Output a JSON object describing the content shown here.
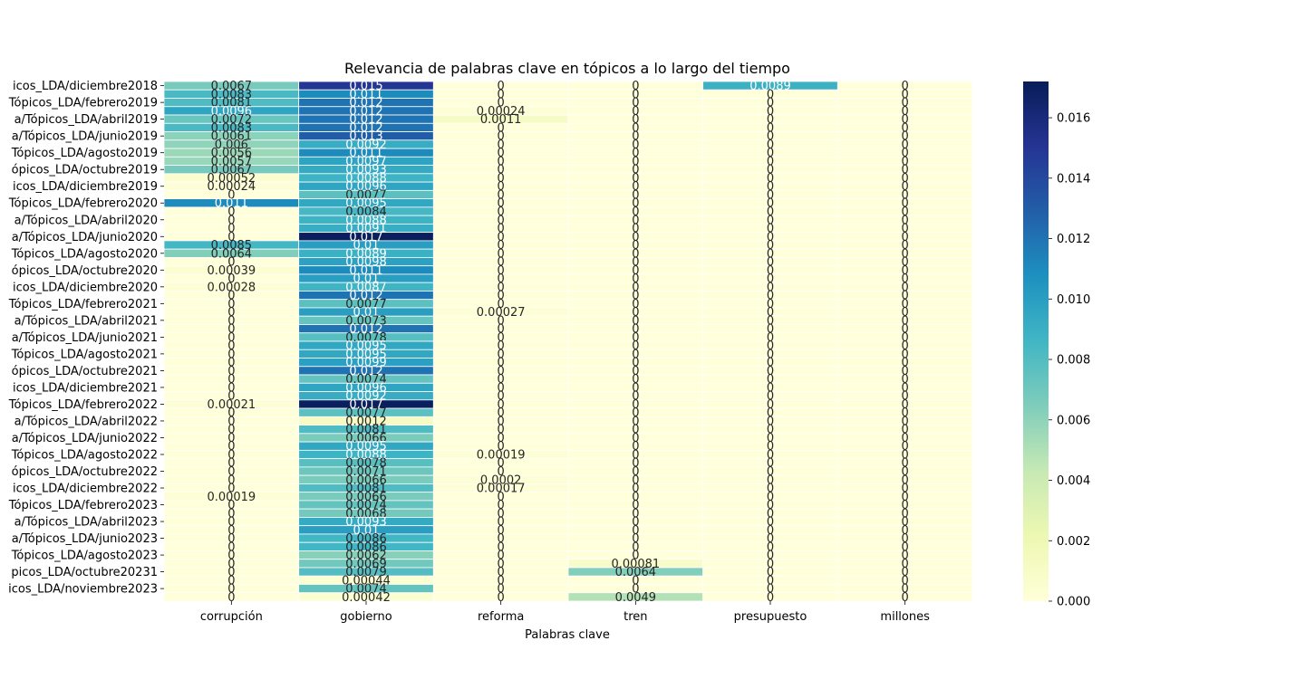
{
  "chart_data": {
    "type": "heatmap",
    "title": "Relevancia de palabras clave en tópicos a lo largo del tiempo",
    "xlabel": "Palabras clave",
    "ylabel": "",
    "columns": [
      "corrupción",
      "gobierno",
      "reforma",
      "tren",
      "presupuesto",
      "millones"
    ],
    "row_tick_labels": [
      {
        "row": 0,
        "label": "icos_LDA/diciembre2018"
      },
      {
        "row": 2,
        "label": "Tópicos_LDA/febrero2019"
      },
      {
        "row": 4,
        "label": "a/Tópicos_LDA/abril2019"
      },
      {
        "row": 6,
        "label": "a/Tópicos_LDA/junio2019"
      },
      {
        "row": 8,
        "label": "Tópicos_LDA/agosto2019"
      },
      {
        "row": 10,
        "label": "ópicos_LDA/octubre2019"
      },
      {
        "row": 12,
        "label": "icos_LDA/diciembre2019"
      },
      {
        "row": 14,
        "label": "Tópicos_LDA/febrero2020"
      },
      {
        "row": 16,
        "label": "a/Tópicos_LDA/abril2020"
      },
      {
        "row": 18,
        "label": "a/Tópicos_LDA/junio2020"
      },
      {
        "row": 20,
        "label": "Tópicos_LDA/agosto2020"
      },
      {
        "row": 22,
        "label": "ópicos_LDA/octubre2020"
      },
      {
        "row": 24,
        "label": "icos_LDA/diciembre2020"
      },
      {
        "row": 26,
        "label": "Tópicos_LDA/febrero2021"
      },
      {
        "row": 28,
        "label": "a/Tópicos_LDA/abril2021"
      },
      {
        "row": 30,
        "label": "a/Tópicos_LDA/junio2021"
      },
      {
        "row": 32,
        "label": "Tópicos_LDA/agosto2021"
      },
      {
        "row": 34,
        "label": "ópicos_LDA/octubre2021"
      },
      {
        "row": 36,
        "label": "icos_LDA/diciembre2021"
      },
      {
        "row": 38,
        "label": "Tópicos_LDA/febrero2022"
      },
      {
        "row": 40,
        "label": "a/Tópicos_LDA/abril2022"
      },
      {
        "row": 42,
        "label": "a/Tópicos_LDA/junio2022"
      },
      {
        "row": 44,
        "label": "Tópicos_LDA/agosto2022"
      },
      {
        "row": 46,
        "label": "ópicos_LDA/octubre2022"
      },
      {
        "row": 48,
        "label": "icos_LDA/diciembre2022"
      },
      {
        "row": 50,
        "label": "Tópicos_LDA/febrero2023"
      },
      {
        "row": 52,
        "label": "a/Tópicos_LDA/abril2023"
      },
      {
        "row": 54,
        "label": "a/Tópicos_LDA/junio2023"
      },
      {
        "row": 56,
        "label": "Tópicos_LDA/agosto2023"
      },
      {
        "row": 58,
        "label": "picos_LDA/octubre20231"
      },
      {
        "row": 60,
        "label": "icos_LDA/noviembre2023"
      }
    ],
    "values": [
      [
        0.0067,
        0.015,
        0,
        0,
        0.0089,
        0
      ],
      [
        0.0083,
        0.011,
        0,
        0,
        0,
        0
      ],
      [
        0.0081,
        0.012,
        0,
        0,
        0,
        0
      ],
      [
        0.0096,
        0.012,
        0.00024,
        0,
        0,
        0
      ],
      [
        0.0072,
        0.012,
        0.0011,
        0,
        0,
        0
      ],
      [
        0.0083,
        0.012,
        0,
        0,
        0,
        0
      ],
      [
        0.0061,
        0.013,
        0,
        0,
        0,
        0
      ],
      [
        0.006,
        0.0092,
        0,
        0,
        0,
        0
      ],
      [
        0.0056,
        0.011,
        0,
        0,
        0,
        0
      ],
      [
        0.0057,
        0.0097,
        0,
        0,
        0,
        0
      ],
      [
        0.0067,
        0.0093,
        0,
        0,
        0,
        0
      ],
      [
        0.00052,
        0.0088,
        0,
        0,
        0,
        0
      ],
      [
        0.00024,
        0.0096,
        0,
        0,
        0,
        0
      ],
      [
        0,
        0.0077,
        0,
        0,
        0,
        0
      ],
      [
        0.011,
        0.0095,
        0,
        0,
        0,
        0
      ],
      [
        0,
        0.0084,
        0,
        0,
        0,
        0
      ],
      [
        0,
        0.0088,
        0,
        0,
        0,
        0
      ],
      [
        0,
        0.0091,
        0,
        0,
        0,
        0
      ],
      [
        0,
        0.017,
        0,
        0,
        0,
        0
      ],
      [
        0.0085,
        0.01,
        0,
        0,
        0,
        0
      ],
      [
        0.0064,
        0.0089,
        0,
        0,
        0,
        0
      ],
      [
        0,
        0.0098,
        0,
        0,
        0,
        0
      ],
      [
        0.00039,
        0.011,
        0,
        0,
        0,
        0
      ],
      [
        0,
        0.01,
        0,
        0,
        0,
        0
      ],
      [
        0.00028,
        0.0087,
        0,
        0,
        0,
        0
      ],
      [
        0,
        0.012,
        0,
        0,
        0,
        0
      ],
      [
        0,
        0.0077,
        0,
        0,
        0,
        0
      ],
      [
        0,
        0.01,
        0.00027,
        0,
        0,
        0
      ],
      [
        0,
        0.0073,
        0,
        0,
        0,
        0
      ],
      [
        0,
        0.012,
        0,
        0,
        0,
        0
      ],
      [
        0,
        0.0078,
        0,
        0,
        0,
        0
      ],
      [
        0,
        0.0095,
        0,
        0,
        0,
        0
      ],
      [
        0,
        0.0095,
        0,
        0,
        0,
        0
      ],
      [
        0,
        0.0099,
        0,
        0,
        0,
        0
      ],
      [
        0,
        0.012,
        0,
        0,
        0,
        0
      ],
      [
        0,
        0.0074,
        0,
        0,
        0,
        0
      ],
      [
        0,
        0.0096,
        0,
        0,
        0,
        0
      ],
      [
        0,
        0.0092,
        0,
        0,
        0,
        0
      ],
      [
        0.00021,
        0.017,
        0,
        0,
        0,
        0
      ],
      [
        0,
        0.0077,
        0,
        0,
        0,
        0
      ],
      [
        0,
        0.0012,
        0,
        0,
        0,
        0
      ],
      [
        0,
        0.0081,
        0,
        0,
        0,
        0
      ],
      [
        0,
        0.0066,
        0,
        0,
        0,
        0
      ],
      [
        0,
        0.0095,
        0,
        0,
        0,
        0
      ],
      [
        0,
        0.0088,
        0.00019,
        0,
        0,
        0
      ],
      [
        0,
        0.0078,
        0,
        0,
        0,
        0
      ],
      [
        0,
        0.0071,
        0,
        0,
        0,
        0
      ],
      [
        0,
        0.0066,
        0.0002,
        0,
        0,
        0
      ],
      [
        0,
        0.0081,
        0.00017,
        0,
        0,
        0
      ],
      [
        0.00019,
        0.0066,
        0,
        0,
        0,
        0
      ],
      [
        0,
        0.0074,
        0,
        0,
        0,
        0
      ],
      [
        0,
        0.0068,
        0,
        0,
        0,
        0
      ],
      [
        0,
        0.0093,
        0,
        0,
        0,
        0
      ],
      [
        0,
        0.01,
        0,
        0,
        0,
        0
      ],
      [
        0,
        0.0086,
        0,
        0,
        0,
        0
      ],
      [
        0,
        0.0086,
        0,
        0,
        0,
        0
      ],
      [
        0,
        0.0062,
        0,
        0,
        0,
        0
      ],
      [
        0,
        0.0069,
        0,
        0.00081,
        0,
        0
      ],
      [
        0,
        0.0079,
        0,
        0.0064,
        0,
        0
      ],
      [
        0,
        0.00044,
        0,
        0,
        0,
        0
      ],
      [
        0,
        0.0074,
        0,
        0,
        0,
        0
      ],
      [
        0,
        0.00042,
        0,
        0.0049,
        0,
        0
      ]
    ],
    "value_labels": [
      [
        "0.0067",
        "0.015",
        "0",
        "0",
        "0.0089",
        "0"
      ],
      [
        "0.0083",
        "0.011",
        "0",
        "0",
        "0",
        "0"
      ],
      [
        "0.0081",
        "0.012",
        "0",
        "0",
        "0",
        "0"
      ],
      [
        "0.0096",
        "0.012",
        "0.00024",
        "0",
        "0",
        "0"
      ],
      [
        "0.0072",
        "0.012",
        "0.0011",
        "0",
        "0",
        "0"
      ],
      [
        "0.0083",
        "0.012",
        "0",
        "0",
        "0",
        "0"
      ],
      [
        "0.0061",
        "0.013",
        "0",
        "0",
        "0",
        "0"
      ],
      [
        "0.006",
        "0.0092",
        "0",
        "0",
        "0",
        "0"
      ],
      [
        "0.0056",
        "0.011",
        "0",
        "0",
        "0",
        "0"
      ],
      [
        "0.0057",
        "0.0097",
        "0",
        "0",
        "0",
        "0"
      ],
      [
        "0.0067",
        "0.0093",
        "0",
        "0",
        "0",
        "0"
      ],
      [
        "0.00052",
        "0.0088",
        "0",
        "0",
        "0",
        "0"
      ],
      [
        "0.00024",
        "0.0096",
        "0",
        "0",
        "0",
        "0"
      ],
      [
        "0",
        "0.0077",
        "0",
        "0",
        "0",
        "0"
      ],
      [
        "0.011",
        "0.0095",
        "0",
        "0",
        "0",
        "0"
      ],
      [
        "0",
        "0.0084",
        "0",
        "0",
        "0",
        "0"
      ],
      [
        "0",
        "0.0088",
        "0",
        "0",
        "0",
        "0"
      ],
      [
        "0",
        "0.0091",
        "0",
        "0",
        "0",
        "0"
      ],
      [
        "0",
        "0.017",
        "0",
        "0",
        "0",
        "0"
      ],
      [
        "0.0085",
        "0.01",
        "0",
        "0",
        "0",
        "0"
      ],
      [
        "0.0064",
        "0.0089",
        "0",
        "0",
        "0",
        "0"
      ],
      [
        "0",
        "0.0098",
        "0",
        "0",
        "0",
        "0"
      ],
      [
        "0.00039",
        "0.011",
        "0",
        "0",
        "0",
        "0"
      ],
      [
        "0",
        "0.01",
        "0",
        "0",
        "0",
        "0"
      ],
      [
        "0.00028",
        "0.0087",
        "0",
        "0",
        "0",
        "0"
      ],
      [
        "0",
        "0.012",
        "0",
        "0",
        "0",
        "0"
      ],
      [
        "0",
        "0.0077",
        "0",
        "0",
        "0",
        "0"
      ],
      [
        "0",
        "0.01",
        "0.00027",
        "0",
        "0",
        "0"
      ],
      [
        "0",
        "0.0073",
        "0",
        "0",
        "0",
        "0"
      ],
      [
        "0",
        "0.012",
        "0",
        "0",
        "0",
        "0"
      ],
      [
        "0",
        "0.0078",
        "0",
        "0",
        "0",
        "0"
      ],
      [
        "0",
        "0.0095",
        "0",
        "0",
        "0",
        "0"
      ],
      [
        "0",
        "0.0095",
        "0",
        "0",
        "0",
        "0"
      ],
      [
        "0",
        "0.0099",
        "0",
        "0",
        "0",
        "0"
      ],
      [
        "0",
        "0.012",
        "0",
        "0",
        "0",
        "0"
      ],
      [
        "0",
        "0.0074",
        "0",
        "0",
        "0",
        "0"
      ],
      [
        "0",
        "0.0096",
        "0",
        "0",
        "0",
        "0"
      ],
      [
        "0",
        "0.0092",
        "0",
        "0",
        "0",
        "0"
      ],
      [
        "0.00021",
        "0.017",
        "0",
        "0",
        "0",
        "0"
      ],
      [
        "0",
        "0.0077",
        "0",
        "0",
        "0",
        "0"
      ],
      [
        "0",
        "0.0012",
        "0",
        "0",
        "0",
        "0"
      ],
      [
        "0",
        "0.0081",
        "0",
        "0",
        "0",
        "0"
      ],
      [
        "0",
        "0.0066",
        "0",
        "0",
        "0",
        "0"
      ],
      [
        "0",
        "0.0095",
        "0",
        "0",
        "0",
        "0"
      ],
      [
        "0",
        "0.0088",
        "0.00019",
        "0",
        "0",
        "0"
      ],
      [
        "0",
        "0.0078",
        "0",
        "0",
        "0",
        "0"
      ],
      [
        "0",
        "0.0071",
        "0",
        "0",
        "0",
        "0"
      ],
      [
        "0",
        "0.0066",
        "0.0002",
        "0",
        "0",
        "0"
      ],
      [
        "0",
        "0.0081",
        "0.00017",
        "0",
        "0",
        "0"
      ],
      [
        "0.00019",
        "0.0066",
        "0",
        "0",
        "0",
        "0"
      ],
      [
        "0",
        "0.0074",
        "0",
        "0",
        "0",
        "0"
      ],
      [
        "0",
        "0.0068",
        "0",
        "0",
        "0",
        "0"
      ],
      [
        "0",
        "0.0093",
        "0",
        "0",
        "0",
        "0"
      ],
      [
        "0",
        "0.01",
        "0",
        "0",
        "0",
        "0"
      ],
      [
        "0",
        "0.0086",
        "0",
        "0",
        "0",
        "0"
      ],
      [
        "0",
        "0.0086",
        "0",
        "0",
        "0",
        "0"
      ],
      [
        "0",
        "0.0062",
        "0",
        "0",
        "0",
        "0"
      ],
      [
        "0",
        "0.0069",
        "0",
        "0.00081",
        "0",
        "0"
      ],
      [
        "0",
        "0.0079",
        "0",
        "0.0064",
        "0",
        "0"
      ],
      [
        "0",
        "0.00044",
        "0",
        "0",
        "0",
        "0"
      ],
      [
        "0",
        "0.0074",
        "0",
        "0",
        "0",
        "0"
      ],
      [
        "0",
        "0.00042",
        "0",
        "0.0049",
        "0",
        "0"
      ]
    ],
    "colorbar": {
      "colormap": "YlGnBu",
      "range": [
        0,
        0.0172
      ],
      "ticks": [
        "0.000",
        "0.002",
        "0.004",
        "0.006",
        "0.008",
        "0.010",
        "0.012",
        "0.014",
        "0.016"
      ]
    }
  }
}
